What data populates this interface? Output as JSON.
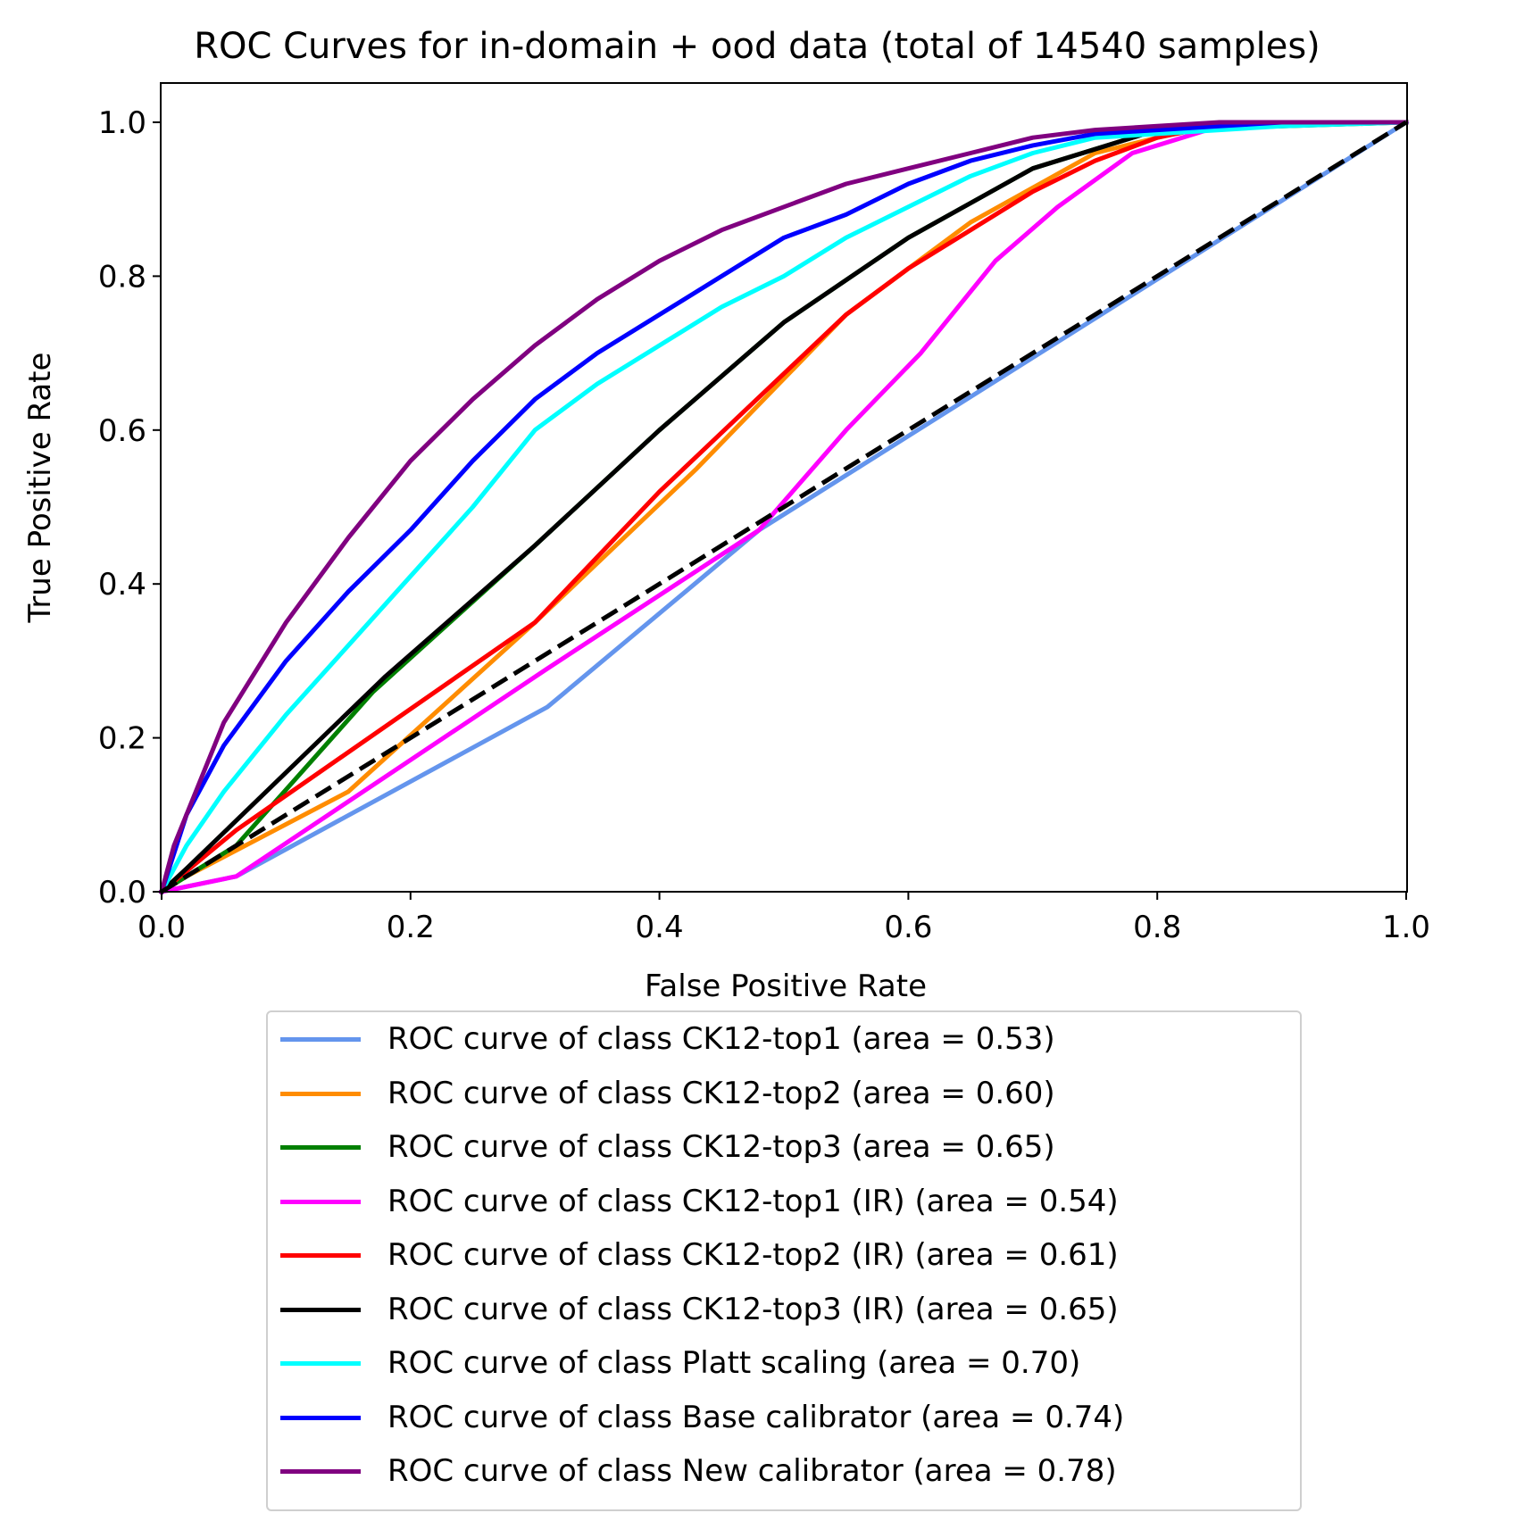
{
  "chart_data": {
    "type": "line",
    "title": "ROC Curves for in-domain + ood data (total of 14540 samples)",
    "xlabel": "False Positive Rate",
    "ylabel": "True Positive Rate",
    "xlim": [
      0.0,
      1.0
    ],
    "ylim": [
      0.0,
      1.05
    ],
    "xticks": [
      "0.0",
      "0.2",
      "0.4",
      "0.6",
      "0.8",
      "1.0"
    ],
    "yticks": [
      "0.0",
      "0.2",
      "0.4",
      "0.6",
      "0.8",
      "1.0"
    ],
    "grid": false,
    "legend_position": "below",
    "chance_line": {
      "x": [
        0,
        1
      ],
      "y": [
        0,
        1
      ],
      "color": "#000000",
      "style": "dashed"
    },
    "series": [
      {
        "name": "ROC curve of class CK12-top1 (area = 0.53)",
        "color": "#6495ed",
        "x": [
          0,
          0.06,
          0.31,
          0.48,
          1.0
        ],
        "y": [
          0,
          0.02,
          0.24,
          0.47,
          1.0
        ]
      },
      {
        "name": "ROC curve of class CK12-top2 (area = 0.60)",
        "color": "#ff8c00",
        "x": [
          0,
          0.02,
          0.15,
          0.3,
          0.43,
          0.55,
          0.65,
          0.75,
          0.85,
          1.0
        ],
        "y": [
          0,
          0.02,
          0.13,
          0.35,
          0.55,
          0.75,
          0.87,
          0.96,
          1.0,
          1.0
        ]
      },
      {
        "name": "ROC curve of class CK12-top3 (area = 0.65)",
        "color": "#008000",
        "x": [
          0,
          0.06,
          0.17,
          0.3,
          0.4,
          0.5,
          0.6,
          0.7,
          0.8,
          1.0
        ],
        "y": [
          0,
          0.06,
          0.26,
          0.45,
          0.6,
          0.74,
          0.85,
          0.94,
          0.99,
          1.0
        ]
      },
      {
        "name": "ROC curve of class CK12-top1 (IR) (area = 0.54)",
        "color": "#ff00ff",
        "x": [
          0,
          0.06,
          0.31,
          0.48,
          0.55,
          0.61,
          0.67,
          0.72,
          0.78,
          0.85,
          1.0
        ],
        "y": [
          0,
          0.02,
          0.29,
          0.47,
          0.6,
          0.7,
          0.82,
          0.89,
          0.96,
          0.995,
          1.0
        ]
      },
      {
        "name": "ROC curve of class CK12-top2 (IR) (area = 0.61)",
        "color": "#ff0000",
        "x": [
          0,
          0.06,
          0.3,
          0.4,
          0.55,
          0.6,
          0.65,
          0.7,
          0.75,
          0.8,
          0.86,
          1.0
        ],
        "y": [
          0,
          0.08,
          0.35,
          0.52,
          0.75,
          0.81,
          0.86,
          0.91,
          0.95,
          0.98,
          1.0,
          1.0
        ]
      },
      {
        "name": "ROC curve of class CK12-top3 (IR) (area = 0.65)",
        "color": "#000000",
        "x": [
          0,
          0.02,
          0.18,
          0.3,
          0.4,
          0.5,
          0.6,
          0.7,
          0.8,
          0.87,
          1.0
        ],
        "y": [
          0,
          0.03,
          0.28,
          0.45,
          0.6,
          0.74,
          0.85,
          0.94,
          0.99,
          1.0,
          1.0
        ]
      },
      {
        "name": "ROC curve of class Platt scaling (area = 0.70)",
        "color": "#00ffff",
        "x": [
          0,
          0.02,
          0.05,
          0.1,
          0.15,
          0.2,
          0.25,
          0.3,
          0.35,
          0.4,
          0.45,
          0.5,
          0.55,
          0.6,
          0.65,
          0.7,
          0.75,
          0.8,
          0.85,
          0.9,
          1.0
        ],
        "y": [
          0,
          0.06,
          0.13,
          0.23,
          0.32,
          0.41,
          0.5,
          0.6,
          0.66,
          0.71,
          0.76,
          0.8,
          0.85,
          0.89,
          0.93,
          0.96,
          0.98,
          0.985,
          0.99,
          0.995,
          1.0
        ]
      },
      {
        "name": "ROC curve of class Base calibrator (area = 0.74)",
        "color": "#0000ff",
        "x": [
          0,
          0.02,
          0.05,
          0.1,
          0.15,
          0.2,
          0.25,
          0.3,
          0.35,
          0.4,
          0.45,
          0.5,
          0.55,
          0.6,
          0.65,
          0.7,
          0.75,
          0.8,
          0.85,
          0.9,
          1.0
        ],
        "y": [
          0,
          0.1,
          0.19,
          0.3,
          0.39,
          0.47,
          0.56,
          0.64,
          0.7,
          0.75,
          0.8,
          0.85,
          0.88,
          0.92,
          0.95,
          0.97,
          0.985,
          0.99,
          0.995,
          1.0,
          1.0
        ]
      },
      {
        "name": "ROC curve of class New calibrator (area = 0.78)",
        "color": "#800080",
        "x": [
          0,
          0.01,
          0.03,
          0.05,
          0.1,
          0.15,
          0.2,
          0.25,
          0.3,
          0.35,
          0.4,
          0.45,
          0.5,
          0.55,
          0.6,
          0.65,
          0.7,
          0.75,
          0.8,
          0.85,
          0.9,
          1.0
        ],
        "y": [
          0,
          0.06,
          0.14,
          0.22,
          0.35,
          0.46,
          0.56,
          0.64,
          0.71,
          0.77,
          0.82,
          0.86,
          0.89,
          0.92,
          0.94,
          0.96,
          0.98,
          0.99,
          0.995,
          1.0,
          1.0,
          1.0
        ]
      }
    ]
  }
}
